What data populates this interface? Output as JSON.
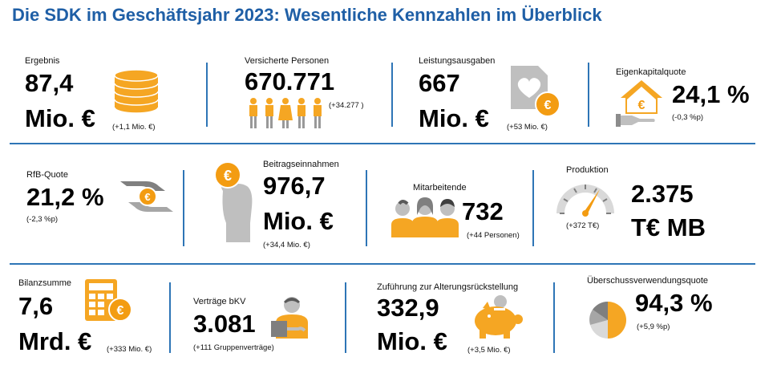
{
  "title": "Die SDK im Geschäftsjahr 2023: Wesentliche Kennzahlen im Überblick",
  "colors": {
    "accent": "#f39c12",
    "line": "#2e75b6",
    "title": "#1f5fa6",
    "gray": "#a6a6a6"
  },
  "kpis": {
    "ergebnis": {
      "label": "Ergebnis",
      "value1": "87,4",
      "value2": "Mio. €",
      "change": "(+1,1 Mio. €)",
      "icon": "coin-stack-icon"
    },
    "versicherte": {
      "label": "Versicherte Personen",
      "value": "670.771",
      "change": "(+34.277 )",
      "icon": "people-icon"
    },
    "leistung": {
      "label": "Leistungsausgaben",
      "value1": "667",
      "value2": "Mio. €",
      "change": "(+53 Mio. €)",
      "icon": "heart-document-icon"
    },
    "eigenkapital": {
      "label": "Eigenkapitalquote",
      "value": "24,1 %",
      "change": "(-0,3 %p)",
      "icon": "house-hand-icon"
    },
    "rfb": {
      "label": "RfB-Quote",
      "value": "21,2 %",
      "change": "(-2,3 %p)",
      "icon": "coin-hands-icon"
    },
    "beitrag": {
      "label": "Beitragseinnahmen",
      "value1": "976,7",
      "value2": "Mio. €",
      "change": "(+34,4 Mio. €)",
      "icon": "hand-coin-icon"
    },
    "mitarbeitende": {
      "label": "Mitarbeitende",
      "value": "732",
      "change": "(+44 Personen)",
      "icon": "employees-icon"
    },
    "produktion": {
      "label": "Produktion",
      "value1": "2.375",
      "value2": "T€ MB",
      "change": "(+372 T€)",
      "icon": "gauge-icon"
    },
    "bilanz": {
      "label": "Bilanzsumme",
      "value1": "7,6",
      "value2": "Mrd. €",
      "change": "(+333 Mio. €)",
      "icon": "calculator-icon"
    },
    "vertraege": {
      "label": "Verträge bKV",
      "value": "3.081",
      "change": "(+111 Gruppenverträge)",
      "icon": "person-document-icon"
    },
    "zufuehrung": {
      "label": "Zuführung zur Alterungsrückstellung",
      "value1": "332,9",
      "value2": "Mio. €",
      "change": "(+3,5 Mio. €)",
      "icon": "piggy-bank-icon"
    },
    "ueberschuss": {
      "label": "Überschussverwendungsquote",
      "value": "94,3 %",
      "change": "(+5,9 %p)",
      "icon": "pie-chart-icon"
    }
  }
}
